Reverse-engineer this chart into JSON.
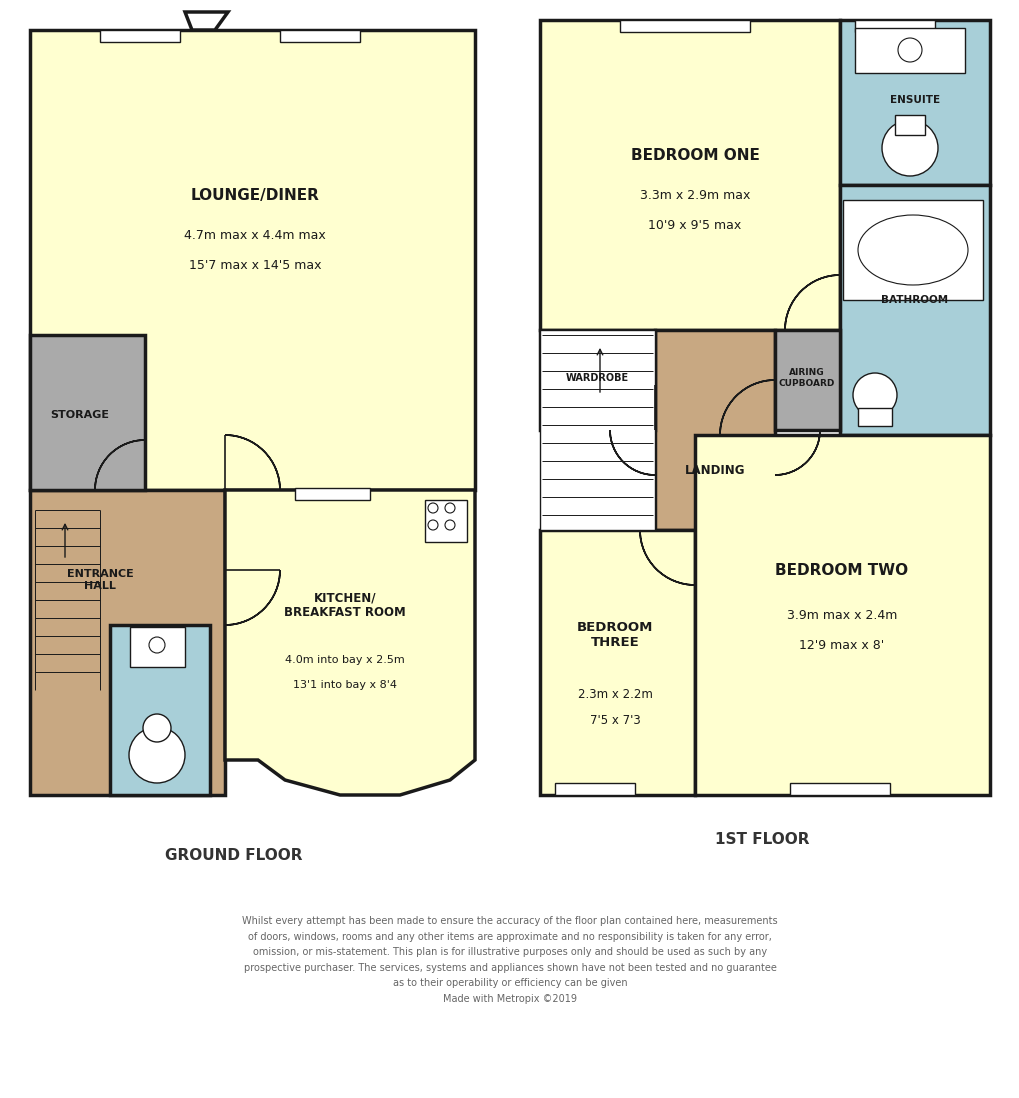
{
  "bg_color": "#ffffff",
  "wall_color": "#1a1a1a",
  "wall_lw": 2.5,
  "room_colors": {
    "lounge": "#ffffd0",
    "kitchen": "#ffffd0",
    "entrance_hall": "#c8a882",
    "storage": "#aaaaaa",
    "wc": "#a8cfd8",
    "bedroom_one": "#ffffd0",
    "bedroom_two": "#ffffd0",
    "bedroom_three": "#ffffd0",
    "landing": "#c8a882",
    "bathroom": "#a8cfd8",
    "ensuite": "#a8cfd8",
    "wardrobe": "#aaaaaa",
    "airing": "#aaaaaa"
  },
  "ground_floor_label": "GROUND FLOOR",
  "first_floor_label": "1ST FLOOR",
  "disclaimer": "Whilst every attempt has been made to ensure the accuracy of the floor plan contained here, measurements\nof doors, windows, rooms and any other items are approximate and no responsibility is taken for any error,\nomission, or mis-statement. This plan is for illustrative purposes only and should be used as such by any\nprospective purchaser. The services, systems and appliances shown have not been tested and no guarantee\nas to their operability or efficiency can be given\nMade with Metropix ©2019",
  "label_color": "#333333",
  "text_color": "#666666"
}
